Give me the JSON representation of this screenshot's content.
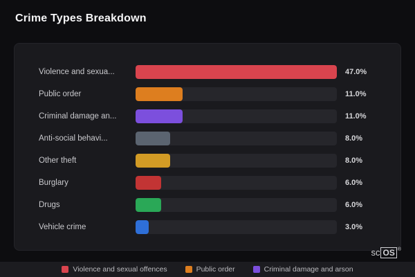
{
  "title": "Crime Types Breakdown",
  "chart_data": {
    "type": "bar",
    "orientation": "horizontal",
    "title": "Crime Types Breakdown",
    "categories": [
      "Violence and sexua...",
      "Public order",
      "Criminal damage an...",
      "Anti-social behavi...",
      "Other theft",
      "Burglary",
      "Drugs",
      "Vehicle crime"
    ],
    "values": [
      47.0,
      11.0,
      11.0,
      8.0,
      8.0,
      6.0,
      6.0,
      3.0
    ],
    "value_labels": [
      "47.0%",
      "11.0%",
      "11.0%",
      "8.0%",
      "8.0%",
      "6.0%",
      "6.0%",
      "3.0%"
    ],
    "bar_colors": [
      "#d9444e",
      "#dd7e1f",
      "#7c4fdd",
      "#5b6470",
      "#d29b25",
      "#c23434",
      "#2aa857",
      "#2e6fd8"
    ],
    "max_value": 47.0,
    "xlim": [
      0,
      47
    ],
    "grid": false,
    "legend_position": "bottom",
    "legend": [
      {
        "label": "Violence and sexual offences",
        "color": "#d9444e"
      },
      {
        "label": "Public order",
        "color": "#dd7e1f"
      },
      {
        "label": "Criminal damage and arson",
        "color": "#7c4fdd"
      }
    ]
  },
  "logo": {
    "prefix": "sc",
    "box": "OS",
    "registered": "®"
  }
}
